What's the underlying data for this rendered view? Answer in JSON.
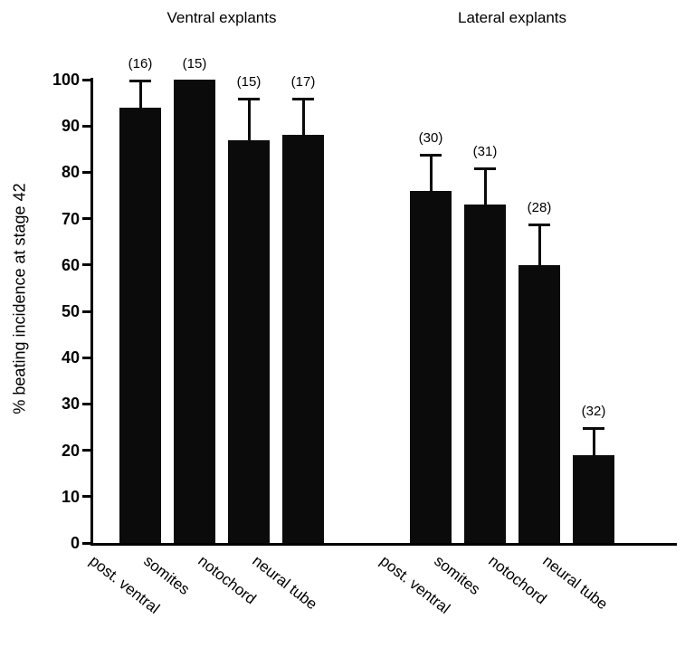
{
  "chart_data": {
    "type": "bar",
    "title": "",
    "ylabel": "% beating incidence at stage 42",
    "xlabel": "",
    "ylim": [
      0,
      100
    ],
    "yticks": [
      0,
      10,
      20,
      30,
      40,
      50,
      60,
      70,
      80,
      90,
      100
    ],
    "grid": false,
    "legend": "none",
    "bar_color": "#0b0b0b",
    "error_bars": "upper only",
    "groups": [
      {
        "label": "Ventral explants",
        "bars": [
          {
            "category": "post. ventral",
            "value": 94,
            "error_upper": 6,
            "n_label": "(16)"
          },
          {
            "category": "somites",
            "value": 100,
            "error_upper": 0,
            "n_label": "(15)"
          },
          {
            "category": "notochord",
            "value": 87,
            "error_upper": 9,
            "n_label": "(15)"
          },
          {
            "category": "neural tube",
            "value": 88,
            "error_upper": 8,
            "n_label": "(17)"
          }
        ]
      },
      {
        "label": "Lateral explants",
        "bars": [
          {
            "category": "post. ventral",
            "value": 76,
            "error_upper": 8,
            "n_label": "(30)"
          },
          {
            "category": "somites",
            "value": 73,
            "error_upper": 8,
            "n_label": "(31)"
          },
          {
            "category": "notochord",
            "value": 60,
            "error_upper": 9,
            "n_label": "(28)"
          },
          {
            "category": "neural tube",
            "value": 19,
            "error_upper": 6,
            "n_label": "(32)"
          }
        ]
      }
    ]
  }
}
